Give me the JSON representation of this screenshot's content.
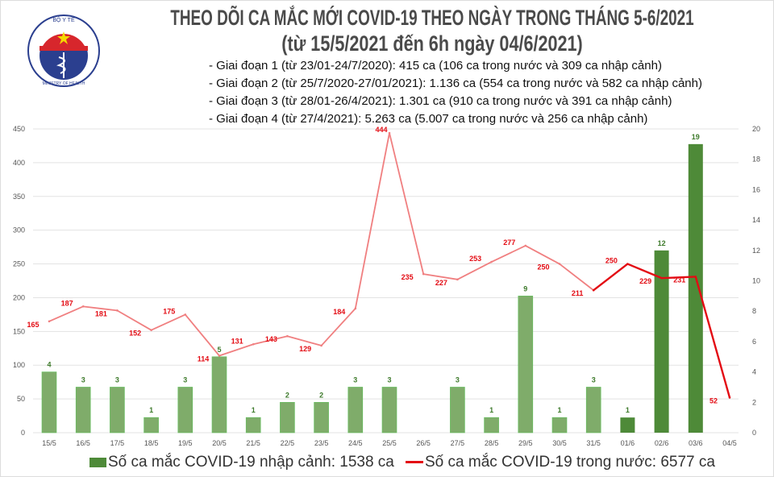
{
  "header": {
    "logo_text_top": "BỘ Y TẾ",
    "logo_text_bottom": "MINISTRY OF HEALTH",
    "title": "THEO DÕI CA MẮC MỚI COVID-19 THEO NGÀY TRONG THÁNG 5-6/2021",
    "subtitle": "(từ 15/5/2021 đến 6h ngày 04/6/2021)",
    "phases": [
      "- Giai đoạn 1 (từ 23/01-24/7/2020): 415 ca (106 ca trong nước và 309 ca nhập cảnh)",
      "- Giai đoạn 2 (từ 25/7/2020-27/01/2021): 1.136 ca (554 ca trong nước và 582 ca nhập cảnh)",
      "- Giai đoạn 3 (từ 28/01-26/4/2021): 1.301 ca (910 ca trong nước và 391 ca nhập cảnh)",
      "- Giai đoạn 4 (từ 27/4/2021): 5.263 ca (5.007 ca trong nước và 256 ca nhập cảnh)"
    ]
  },
  "chart_data": {
    "type": "bar+line",
    "categories": [
      "15/5",
      "16/5",
      "17/5",
      "18/5",
      "19/5",
      "20/5",
      "21/5",
      "22/5",
      "23/5",
      "24/5",
      "25/5",
      "26/5",
      "27/5",
      "28/5",
      "29/5",
      "30/5",
      "31/5",
      "01/6",
      "02/6",
      "03/6",
      "04/5"
    ],
    "series": [
      {
        "name": "Số ca mắc COVID-19 nhập cảnh: 1538 ca",
        "type": "bar",
        "axis": "right",
        "values": [
          4,
          3,
          3,
          1,
          3,
          5,
          1,
          2,
          2,
          3,
          3,
          null,
          3,
          1,
          9,
          1,
          3,
          1,
          12,
          19,
          null
        ],
        "color": "#7fac6a",
        "highlight_color": "#4e8a38",
        "highlight_from": "01/6"
      },
      {
        "name": "Số ca mắc COVID-19 trong nước: 6577 ca",
        "type": "line",
        "axis": "left",
        "values": [
          165,
          187,
          181,
          152,
          175,
          114,
          131,
          143,
          129,
          184,
          444,
          235,
          227,
          253,
          277,
          250,
          211,
          250,
          229,
          231,
          52
        ],
        "color": "#f07f80",
        "highlight_color": "#e30b13",
        "highlight_from": "31/5"
      }
    ],
    "y_left": {
      "ticks": [
        0,
        50,
        100,
        150,
        200,
        250,
        300,
        350,
        400,
        450
      ],
      "ylim": [
        0,
        450
      ]
    },
    "y_right": {
      "ticks": [
        0,
        2,
        4,
        6,
        8,
        10,
        12,
        14,
        16,
        18,
        20
      ],
      "ylim": [
        0,
        20
      ]
    },
    "grid": true,
    "legend": "bottom"
  }
}
